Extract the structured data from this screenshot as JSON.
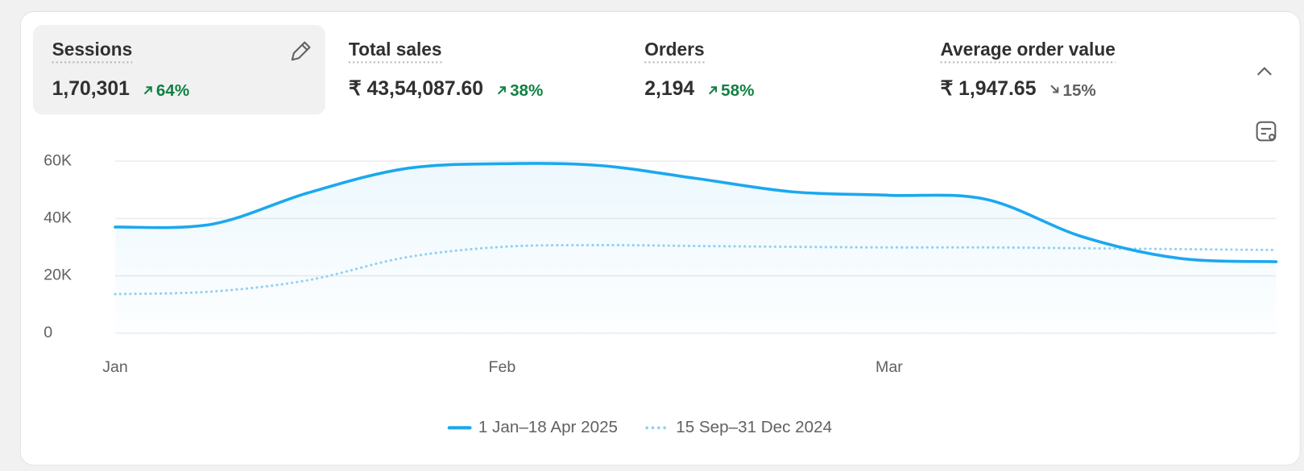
{
  "metrics": [
    {
      "label": "Sessions",
      "value": "1,70,301",
      "change": "64%",
      "direction": "up"
    },
    {
      "label": "Total sales",
      "value": "₹ 43,54,087.60",
      "change": "38%",
      "direction": "up"
    },
    {
      "label": "Orders",
      "value": "2,194",
      "change": "58%",
      "direction": "up"
    },
    {
      "label": "Average order value",
      "value": "₹ 1,947.65",
      "change": "15%",
      "direction": "down"
    }
  ],
  "chart_data": {
    "type": "line",
    "categories": [
      "Jan",
      null,
      null,
      null,
      "Feb",
      null,
      null,
      null,
      "Mar",
      null,
      null,
      null,
      null
    ],
    "series": [
      {
        "name": "1 Jan–18 Apr 2025",
        "color": "#1ba8ef",
        "style": "solid",
        "values": [
          37000,
          38000,
          49000,
          57400,
          59100,
          58500,
          54000,
          49300,
          48100,
          46700,
          33600,
          26100,
          24900
        ]
      },
      {
        "name": "15 Sep–31 Dec 2024",
        "color": "#8fd0f2",
        "style": "dotted",
        "values": [
          13600,
          14500,
          18500,
          26400,
          30100,
          30700,
          30400,
          30100,
          29900,
          29900,
          29600,
          29300,
          29000
        ]
      }
    ],
    "ylim": [
      0,
      60000
    ],
    "yticks": [
      0,
      {
        "value": 20000,
        "label": "20K"
      },
      {
        "value": 40000,
        "label": "40K"
      },
      {
        "value": 60000,
        "label": "60K"
      }
    ],
    "grid": true,
    "area": true,
    "legend": "bottom"
  }
}
